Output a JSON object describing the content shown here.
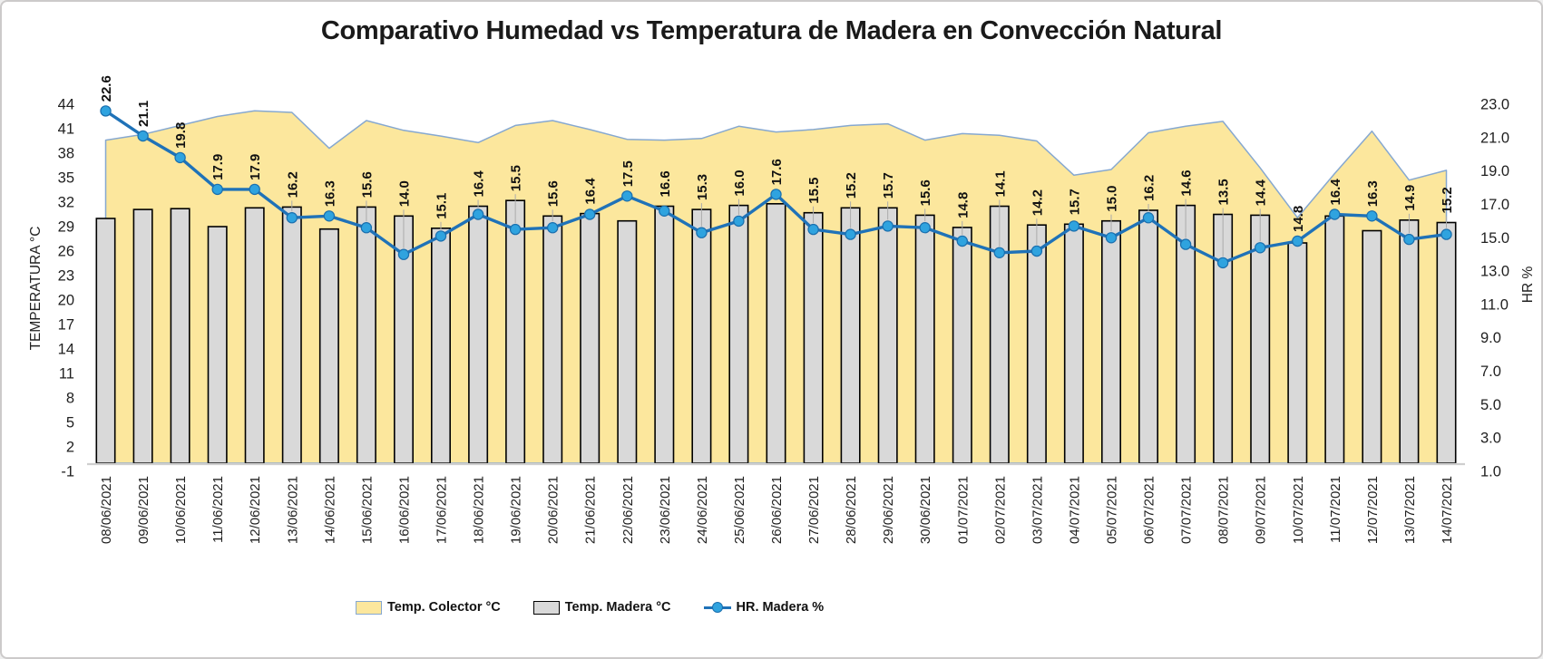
{
  "chart_data": {
    "type": "combo",
    "title": "Comparativo Humedad vs Temperatura de Madera en Convección Natural",
    "grid": false,
    "legend_position": "bottom",
    "categories": [
      "08/06/2021",
      "09/06/2021",
      "10/06/2021",
      "11/06/2021",
      "12/06/2021",
      "13/06/2021",
      "14/06/2021",
      "15/06/2021",
      "16/06/2021",
      "17/06/2021",
      "18/06/2021",
      "19/06/2021",
      "20/06/2021",
      "21/06/2021",
      "22/06/2021",
      "23/06/2021",
      "24/06/2021",
      "25/06/2021",
      "26/06/2021",
      "27/06/2021",
      "28/06/2021",
      "29/06/2021",
      "30/06/2021",
      "01/07/2021",
      "02/07/2021",
      "03/07/2021",
      "04/07/2021",
      "05/07/2021",
      "06/07/2021",
      "07/07/2021",
      "08/07/2021",
      "09/07/2021",
      "10/07/2021",
      "11/07/2021",
      "12/07/2021",
      "13/07/2021",
      "14/07/2021"
    ],
    "series": [
      {
        "name": "Temp. Colector °C",
        "type": "area",
        "axis": "left",
        "fill": "#fce79d",
        "stroke": "#86a8d0",
        "values": [
          39.6,
          40.3,
          41.4,
          42.5,
          43.2,
          43.0,
          38.6,
          42.0,
          40.8,
          40.1,
          39.3,
          41.4,
          42.0,
          40.9,
          39.7,
          39.6,
          39.8,
          41.3,
          40.6,
          40.9,
          41.4,
          41.6,
          39.6,
          40.4,
          40.2,
          39.5,
          35.3,
          36.0,
          40.5,
          41.3,
          41.9,
          36.2,
          30.1,
          35.5,
          40.7,
          34.7,
          35.9
        ]
      },
      {
        "name": "Temp. Madera °C",
        "type": "bar",
        "axis": "left",
        "fill": "#d9d9d9",
        "stroke": "#000000",
        "values": [
          30.0,
          31.1,
          31.2,
          29.0,
          31.3,
          31.4,
          28.7,
          31.4,
          30.3,
          28.8,
          31.5,
          32.2,
          30.3,
          30.6,
          29.7,
          31.5,
          31.1,
          31.6,
          31.8,
          30.7,
          31.3,
          31.3,
          30.4,
          28.9,
          31.5,
          29.2,
          29.3,
          29.7,
          31.0,
          31.6,
          30.5,
          30.4,
          27.0,
          30.3,
          28.5,
          29.8,
          29.5
        ]
      },
      {
        "name": "HR. Madera %",
        "type": "line",
        "axis": "right",
        "stroke": "#1f72b8",
        "marker_fill": "#2fa3df",
        "marker_stroke": "#1a6fae",
        "data_labels": true,
        "values": [
          22.6,
          21.1,
          19.8,
          17.9,
          17.9,
          16.2,
          16.3,
          15.6,
          14.0,
          15.1,
          16.4,
          15.5,
          15.6,
          16.4,
          17.5,
          16.6,
          15.3,
          16.0,
          17.6,
          15.5,
          15.2,
          15.7,
          15.6,
          14.8,
          14.1,
          14.2,
          15.7,
          15.0,
          16.2,
          14.6,
          13.5,
          14.4,
          14.8,
          16.4,
          16.3,
          14.9,
          15.2
        ]
      }
    ],
    "left_axis": {
      "title": "TEMPERATURA °C",
      "min": -1,
      "max": 44,
      "step": 3,
      "tick_labels": [
        "44",
        "41",
        "38",
        "35",
        "32",
        "29",
        "26",
        "23",
        "20",
        "17",
        "14",
        "11",
        "8",
        "5",
        "2",
        "-1"
      ]
    },
    "right_axis": {
      "title": "HR %",
      "min": 1.0,
      "max": 23.0,
      "step": 2.0,
      "tick_labels": [
        "23.0",
        "21.0",
        "19.0",
        "17.0",
        "15.0",
        "13.0",
        "11.0",
        "9.0",
        "7.0",
        "5.0",
        "3.0",
        "1.0"
      ]
    }
  }
}
